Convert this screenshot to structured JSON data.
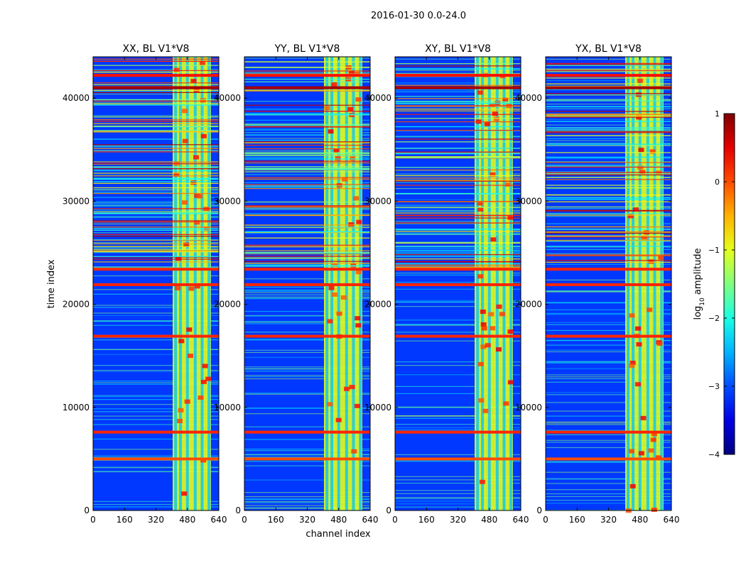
{
  "chart_data": {
    "type": "heatmap",
    "suptitle": "2016-01-30 0.0-24.0",
    "xlabel": "channel index",
    "ylabel": "time index",
    "xlim": [
      0,
      640
    ],
    "ylim": [
      0,
      44000
    ],
    "xticks": [
      0,
      160,
      320,
      480,
      640
    ],
    "yticks": [
      0,
      10000,
      20000,
      30000,
      40000
    ],
    "panels": [
      {
        "title": "XX, BL V1*V8",
        "band_channels": [
          405,
          600
        ]
      },
      {
        "title": "YY, BL V1*V8",
        "band_channels": [
          405,
          600
        ]
      },
      {
        "title": "XY, BL V1*V8",
        "band_channels": [
          405,
          600
        ]
      },
      {
        "title": "YX, BL V1*V8",
        "band_channels": [
          405,
          600
        ]
      }
    ],
    "colorbar": {
      "label": "log",
      "label_sub": "10",
      "label_rest": " amplitude",
      "range": [
        -4,
        1
      ],
      "ticks": [
        1,
        0,
        -1,
        -2,
        -3,
        -4
      ],
      "tick_labels": [
        "1",
        "0",
        "−1",
        "−2",
        "−3",
        "−4"
      ],
      "colormap": "jet"
    },
    "background_level": -3.1,
    "band_level": -1.0,
    "flagged_rows": [
      {
        "t": 7600,
        "level": 0.2
      },
      {
        "t": 21900,
        "level": 0.2
      },
      {
        "t": 23400,
        "level": 0.2
      },
      {
        "t": 5000,
        "level": 0.0
      },
      {
        "t": 16900,
        "level": 0.2
      },
      {
        "t": 41000,
        "level": 0.8
      },
      {
        "t": 42200,
        "level": 0.3
      }
    ],
    "band_columns": [
      420,
      445,
      480,
      520,
      555,
      590
    ]
  },
  "colors": {
    "jet_low": "#00007f",
    "jet_high": "#7f0000"
  }
}
